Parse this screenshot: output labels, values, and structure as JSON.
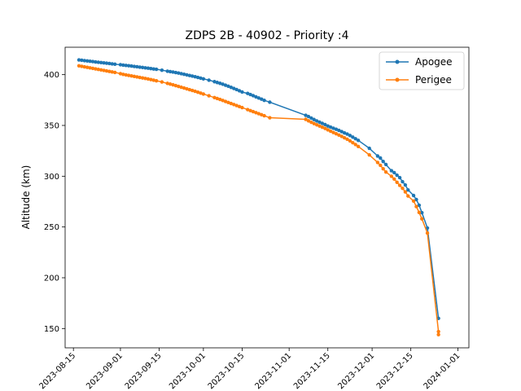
{
  "chart_data": {
    "type": "line",
    "title": "ZDPS 2B - 40902 - Priority :4",
    "xlabel": "",
    "ylabel": "Altitude (km)",
    "xlim": [
      "2023-08-12",
      "2024-01-05"
    ],
    "ylim": [
      131,
      427
    ],
    "x_ticks": [
      "2023-08-15",
      "2023-09-01",
      "2023-09-15",
      "2023-10-01",
      "2023-10-15",
      "2023-11-01",
      "2023-11-15",
      "2023-12-01",
      "2023-12-15",
      "2024-01-01"
    ],
    "y_ticks": [
      150,
      200,
      250,
      300,
      350,
      400
    ],
    "grid": false,
    "legend_position": "top-right",
    "series": [
      {
        "name": "Apogee",
        "color": "#1f77b4",
        "points": [
          [
            "2023-08-17",
            414.5
          ],
          [
            "2023-08-18",
            414.2
          ],
          [
            "2023-08-19",
            413.8
          ],
          [
            "2023-08-20",
            413.5
          ],
          [
            "2023-08-21",
            413.2
          ],
          [
            "2023-08-22",
            412.9
          ],
          [
            "2023-08-23",
            412.5
          ],
          [
            "2023-08-24",
            412.2
          ],
          [
            "2023-08-25",
            411.9
          ],
          [
            "2023-08-26",
            411.6
          ],
          [
            "2023-08-27",
            411.3
          ],
          [
            "2023-08-28",
            411.0
          ],
          [
            "2023-08-29",
            410.6
          ],
          [
            "2023-08-30",
            410.3
          ],
          [
            "2023-09-01",
            409.8
          ],
          [
            "2023-09-02",
            409.4
          ],
          [
            "2023-09-03",
            409.1
          ],
          [
            "2023-09-04",
            408.8
          ],
          [
            "2023-09-05",
            408.5
          ],
          [
            "2023-09-06",
            408.1
          ],
          [
            "2023-09-07",
            407.8
          ],
          [
            "2023-09-08",
            407.4
          ],
          [
            "2023-09-09",
            407.1
          ],
          [
            "2023-09-10",
            406.7
          ],
          [
            "2023-09-11",
            406.4
          ],
          [
            "2023-09-12",
            406.0
          ],
          [
            "2023-09-13",
            405.6
          ],
          [
            "2023-09-14",
            405.3
          ],
          [
            "2023-09-16",
            404.4
          ],
          [
            "2023-09-18",
            403.4
          ],
          [
            "2023-09-19",
            403.0
          ],
          [
            "2023-09-20",
            402.6
          ],
          [
            "2023-09-21",
            402.1
          ],
          [
            "2023-09-22",
            401.6
          ],
          [
            "2023-09-23",
            401.0
          ],
          [
            "2023-09-24",
            400.4
          ],
          [
            "2023-09-25",
            399.8
          ],
          [
            "2023-09-26",
            399.2
          ],
          [
            "2023-09-27",
            398.6
          ],
          [
            "2023-09-28",
            398.0
          ],
          [
            "2023-09-29",
            397.3
          ],
          [
            "2023-09-30",
            396.6
          ],
          [
            "2023-10-01",
            395.9
          ],
          [
            "2023-10-03",
            394.6
          ],
          [
            "2023-10-05",
            393.1
          ],
          [
            "2023-10-06",
            392.3
          ],
          [
            "2023-10-07",
            391.5
          ],
          [
            "2023-10-08",
            390.6
          ],
          [
            "2023-10-09",
            389.6
          ],
          [
            "2023-10-10",
            388.6
          ],
          [
            "2023-10-11",
            387.5
          ],
          [
            "2023-10-12",
            386.4
          ],
          [
            "2023-10-13",
            385.3
          ],
          [
            "2023-10-14",
            384.1
          ],
          [
            "2023-10-15",
            382.9
          ],
          [
            "2023-10-17",
            381.5
          ],
          [
            "2023-10-18",
            380.4
          ],
          [
            "2023-10-19",
            379.3
          ],
          [
            "2023-10-20",
            378.1
          ],
          [
            "2023-10-21",
            377.0
          ],
          [
            "2023-10-22",
            375.9
          ],
          [
            "2023-10-23",
            374.7
          ],
          [
            "2023-10-25",
            372.9
          ],
          [
            "2023-11-07",
            360.0
          ],
          [
            "2023-11-08",
            358.8
          ],
          [
            "2023-11-09",
            357.3
          ],
          [
            "2023-11-10",
            355.8
          ],
          [
            "2023-11-11",
            354.4
          ],
          [
            "2023-11-12",
            353.2
          ],
          [
            "2023-11-13",
            352.0
          ],
          [
            "2023-11-14",
            350.8
          ],
          [
            "2023-11-15",
            349.4
          ],
          [
            "2023-11-16",
            348.3
          ],
          [
            "2023-11-17",
            347.2
          ],
          [
            "2023-11-18",
            346.2
          ],
          [
            "2023-11-19",
            345.1
          ],
          [
            "2023-11-20",
            343.9
          ],
          [
            "2023-11-21",
            342.6
          ],
          [
            "2023-11-22",
            341.5
          ],
          [
            "2023-11-23",
            340.1
          ],
          [
            "2023-11-24",
            338.5
          ],
          [
            "2023-11-25",
            336.9
          ],
          [
            "2023-11-26",
            335.3
          ],
          [
            "2023-11-30",
            327.5
          ],
          [
            "2023-12-03",
            319.9
          ],
          [
            "2023-12-04",
            317.9
          ],
          [
            "2023-12-05",
            314.5
          ],
          [
            "2023-12-06",
            311.5
          ],
          [
            "2023-12-08",
            305.4
          ],
          [
            "2023-12-09",
            303.5
          ],
          [
            "2023-12-10",
            301.0
          ],
          [
            "2023-12-11",
            298.6
          ],
          [
            "2023-12-12",
            294.6
          ],
          [
            "2023-12-13",
            291.4
          ],
          [
            "2023-12-14",
            286.5
          ],
          [
            "2023-12-16",
            281.0
          ],
          [
            "2023-12-17",
            277.0
          ],
          [
            "2023-12-18",
            271.4
          ],
          [
            "2023-12-19",
            264.1
          ],
          [
            "2023-12-21",
            249.0
          ],
          [
            "2023-12-25",
            160.0
          ]
        ]
      },
      {
        "name": "Perigee",
        "color": "#ff7f0e",
        "points": [
          [
            "2023-08-17",
            408.7
          ],
          [
            "2023-08-18",
            408.2
          ],
          [
            "2023-08-19",
            407.7
          ],
          [
            "2023-08-20",
            407.2
          ],
          [
            "2023-08-21",
            406.7
          ],
          [
            "2023-08-22",
            406.2
          ],
          [
            "2023-08-23",
            405.7
          ],
          [
            "2023-08-24",
            405.2
          ],
          [
            "2023-08-25",
            404.7
          ],
          [
            "2023-08-26",
            404.2
          ],
          [
            "2023-08-27",
            403.7
          ],
          [
            "2023-08-28",
            403.2
          ],
          [
            "2023-08-29",
            402.7
          ],
          [
            "2023-08-30",
            402.2
          ],
          [
            "2023-09-01",
            401.0
          ],
          [
            "2023-09-02",
            400.3
          ],
          [
            "2023-09-03",
            399.8
          ],
          [
            "2023-09-04",
            399.3
          ],
          [
            "2023-09-05",
            398.8
          ],
          [
            "2023-09-06",
            398.3
          ],
          [
            "2023-09-07",
            397.8
          ],
          [
            "2023-09-08",
            397.3
          ],
          [
            "2023-09-09",
            396.8
          ],
          [
            "2023-09-10",
            396.3
          ],
          [
            "2023-09-11",
            395.8
          ],
          [
            "2023-09-12",
            395.2
          ],
          [
            "2023-09-13",
            394.6
          ],
          [
            "2023-09-14",
            394.0
          ],
          [
            "2023-09-16",
            392.8
          ],
          [
            "2023-09-18",
            391.4
          ],
          [
            "2023-09-19",
            390.7
          ],
          [
            "2023-09-20",
            390.0
          ],
          [
            "2023-09-21",
            389.2
          ],
          [
            "2023-09-22",
            388.4
          ],
          [
            "2023-09-23",
            387.6
          ],
          [
            "2023-09-24",
            386.8
          ],
          [
            "2023-09-25",
            386.0
          ],
          [
            "2023-09-26",
            385.2
          ],
          [
            "2023-09-27",
            384.4
          ],
          [
            "2023-09-28",
            383.6
          ],
          [
            "2023-09-29",
            382.7
          ],
          [
            "2023-09-30",
            381.8
          ],
          [
            "2023-10-01",
            380.9
          ],
          [
            "2023-10-03",
            379.2
          ],
          [
            "2023-10-05",
            377.4
          ],
          [
            "2023-10-06",
            376.5
          ],
          [
            "2023-10-07",
            375.6
          ],
          [
            "2023-10-08",
            374.6
          ],
          [
            "2023-10-09",
            373.6
          ],
          [
            "2023-10-10",
            372.6
          ],
          [
            "2023-10-11",
            371.6
          ],
          [
            "2023-10-12",
            370.6
          ],
          [
            "2023-10-13",
            369.6
          ],
          [
            "2023-10-14",
            368.6
          ],
          [
            "2023-10-15",
            367.6
          ],
          [
            "2023-10-17",
            365.6
          ],
          [
            "2023-10-18",
            364.6
          ],
          [
            "2023-10-19",
            363.6
          ],
          [
            "2023-10-20",
            362.6
          ],
          [
            "2023-10-21",
            361.6
          ],
          [
            "2023-10-22",
            360.6
          ],
          [
            "2023-10-23",
            359.6
          ],
          [
            "2023-10-25",
            357.6
          ],
          [
            "2023-11-07",
            356.0
          ],
          [
            "2023-11-08",
            354.5
          ],
          [
            "2023-11-09",
            353.1
          ],
          [
            "2023-11-10",
            351.8
          ],
          [
            "2023-11-11",
            350.6
          ],
          [
            "2023-11-12",
            349.4
          ],
          [
            "2023-11-13",
            348.2
          ],
          [
            "2023-11-14",
            347.0
          ],
          [
            "2023-11-15",
            345.6
          ],
          [
            "2023-11-16",
            344.3
          ],
          [
            "2023-11-17",
            343.0
          ],
          [
            "2023-11-18",
            341.8
          ],
          [
            "2023-11-19",
            340.5
          ],
          [
            "2023-11-20",
            339.2
          ],
          [
            "2023-11-21",
            337.8
          ],
          [
            "2023-11-22",
            336.4
          ],
          [
            "2023-11-23",
            334.8
          ],
          [
            "2023-11-24",
            333.0
          ],
          [
            "2023-11-25",
            331.2
          ],
          [
            "2023-11-26",
            329.3
          ],
          [
            "2023-11-30",
            321.0
          ],
          [
            "2023-12-03",
            313.5
          ],
          [
            "2023-12-04",
            310.7
          ],
          [
            "2023-12-05",
            307.3
          ],
          [
            "2023-12-06",
            304.1
          ],
          [
            "2023-12-08",
            299.9
          ],
          [
            "2023-12-09",
            297.2
          ],
          [
            "2023-12-10",
            294.0
          ],
          [
            "2023-12-11",
            291.0
          ],
          [
            "2023-12-12",
            288.1
          ],
          [
            "2023-12-13",
            284.6
          ],
          [
            "2023-12-14",
            280.5
          ],
          [
            "2023-12-16",
            275.5
          ],
          [
            "2023-12-17",
            270.1
          ],
          [
            "2023-12-18",
            264.3
          ],
          [
            "2023-12-19",
            258.0
          ],
          [
            "2023-12-21",
            244.0
          ],
          [
            "2023-12-25",
            147.0
          ],
          [
            "2023-12-25",
            144.0
          ]
        ]
      }
    ]
  }
}
